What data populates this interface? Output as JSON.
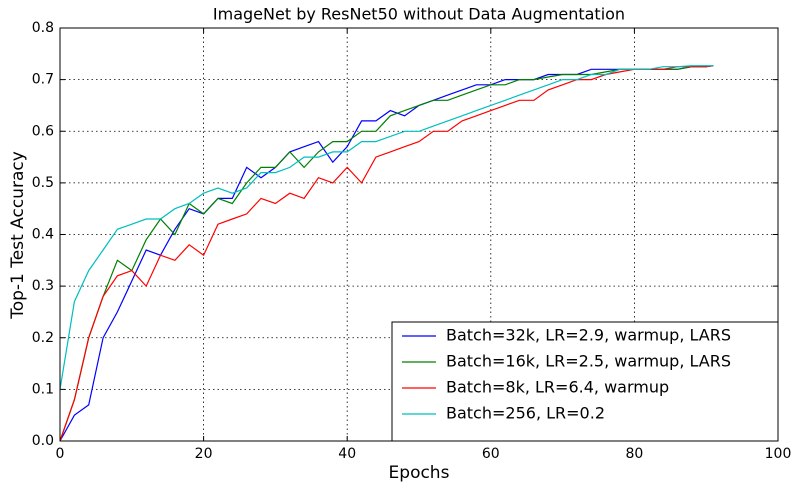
{
  "chart_data": {
    "type": "line",
    "title": "ImageNet by ResNet50 without Data Augmentation",
    "xlabel": "Epochs",
    "ylabel": "Top-1 Test Accuracy",
    "x": [
      0,
      2,
      4,
      6,
      8,
      10,
      12,
      14,
      16,
      18,
      20,
      22,
      24,
      26,
      28,
      30,
      32,
      34,
      36,
      38,
      40,
      42,
      44,
      46,
      48,
      50,
      52,
      54,
      56,
      58,
      60,
      62,
      64,
      66,
      68,
      70,
      72,
      74,
      76,
      78,
      80,
      82,
      84,
      86,
      88,
      90,
      91
    ],
    "series": [
      {
        "name": "Batch=32k, LR=2.9, warmup, LARS",
        "color": "#0000ff",
        "values": [
          0.0,
          0.05,
          0.07,
          0.2,
          0.25,
          0.31,
          0.37,
          0.36,
          0.41,
          0.45,
          0.44,
          0.47,
          0.47,
          0.53,
          0.51,
          0.53,
          0.56,
          0.57,
          0.58,
          0.54,
          0.57,
          0.62,
          0.62,
          0.64,
          0.63,
          0.65,
          0.66,
          0.67,
          0.68,
          0.69,
          0.69,
          0.7,
          0.7,
          0.7,
          0.71,
          0.71,
          0.71,
          0.72,
          0.72,
          0.72,
          0.72,
          0.72,
          0.72,
          0.72,
          0.725,
          0.725,
          0.727
        ]
      },
      {
        "name": "Batch=16k, LR=2.5, warmup, LARS",
        "color": "#008000",
        "values": [
          0.0,
          0.08,
          0.2,
          0.28,
          0.35,
          0.33,
          0.39,
          0.43,
          0.4,
          0.46,
          0.44,
          0.47,
          0.46,
          0.5,
          0.53,
          0.53,
          0.56,
          0.53,
          0.56,
          0.58,
          0.58,
          0.6,
          0.6,
          0.63,
          0.64,
          0.65,
          0.66,
          0.66,
          0.67,
          0.68,
          0.69,
          0.69,
          0.7,
          0.7,
          0.705,
          0.71,
          0.71,
          0.71,
          0.715,
          0.72,
          0.72,
          0.72,
          0.72,
          0.72,
          0.725,
          0.725,
          0.727
        ]
      },
      {
        "name": "Batch=8k, LR=6.4, warmup",
        "color": "#ff0000",
        "values": [
          0.0,
          0.08,
          0.2,
          0.28,
          0.32,
          0.33,
          0.3,
          0.36,
          0.35,
          0.38,
          0.36,
          0.42,
          0.43,
          0.44,
          0.47,
          0.46,
          0.48,
          0.47,
          0.51,
          0.5,
          0.53,
          0.5,
          0.55,
          0.56,
          0.57,
          0.58,
          0.6,
          0.6,
          0.62,
          0.63,
          0.64,
          0.65,
          0.66,
          0.66,
          0.68,
          0.69,
          0.7,
          0.7,
          0.71,
          0.715,
          0.72,
          0.72,
          0.72,
          0.725,
          0.725,
          0.725,
          0.727
        ]
      },
      {
        "name": "Batch=256, LR=0.2",
        "color": "#00bfbf",
        "values": [
          0.1,
          0.27,
          0.33,
          0.37,
          0.41,
          0.42,
          0.43,
          0.43,
          0.45,
          0.46,
          0.48,
          0.49,
          0.48,
          0.49,
          0.52,
          0.52,
          0.53,
          0.55,
          0.55,
          0.56,
          0.56,
          0.58,
          0.58,
          0.59,
          0.6,
          0.6,
          0.61,
          0.62,
          0.63,
          0.64,
          0.65,
          0.66,
          0.67,
          0.68,
          0.69,
          0.7,
          0.7,
          0.71,
          0.71,
          0.72,
          0.72,
          0.72,
          0.725,
          0.725,
          0.727,
          0.727,
          0.727
        ]
      }
    ],
    "xlim": [
      0,
      100
    ],
    "xticks": [
      0,
      20,
      40,
      60,
      80,
      100
    ],
    "ylim": [
      0,
      0.8
    ],
    "yticks": [
      {
        "value": 0,
        "label": "0.0"
      },
      0.1,
      0.2,
      0.3,
      0.4,
      0.5,
      0.6,
      0.7,
      0.8
    ],
    "grid": true,
    "legend": "lower right"
  }
}
